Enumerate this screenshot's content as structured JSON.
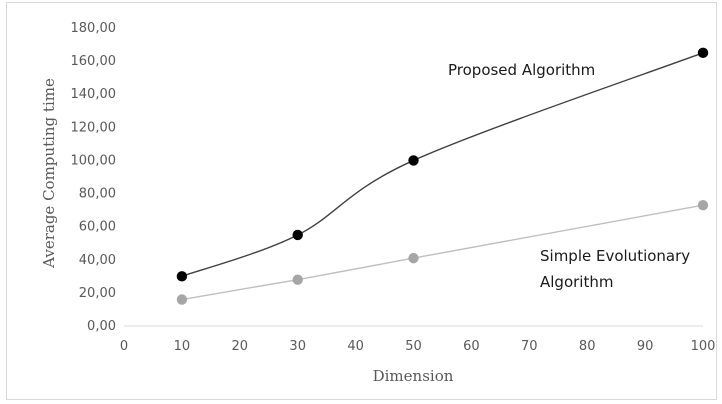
{
  "chart_data": {
    "type": "scatter",
    "xlabel": "Dimension",
    "ylabel": "Average Computing time",
    "xlim": [
      0,
      100
    ],
    "ylim": [
      0,
      180
    ],
    "x_ticks": [
      0,
      10,
      20,
      30,
      40,
      50,
      60,
      70,
      80,
      90,
      100
    ],
    "y_ticks": [
      0,
      20,
      40,
      60,
      80,
      100,
      120,
      140,
      160,
      180
    ],
    "y_tick_labels": [
      "0,00",
      "20,00",
      "40,00",
      "60,00",
      "80,00",
      "100,00",
      "120,00",
      "140,00",
      "160,00",
      "180,00"
    ],
    "grid": false,
    "series": [
      {
        "name": "Proposed Algorithm",
        "label_lines": [
          "Proposed Algorithm"
        ],
        "x": [
          10,
          30,
          50,
          100
        ],
        "y": [
          30,
          55,
          100,
          165
        ],
        "color": "#000000",
        "line_color": "#404040",
        "smooth": true
      },
      {
        "name": "Simple Evolutionary Algorithm",
        "label_lines": [
          "Simple Evolutionary",
          "Algorithm"
        ],
        "x": [
          10,
          30,
          50,
          100
        ],
        "y": [
          16,
          28,
          41,
          73
        ],
        "color": "#a6a6a6",
        "line_color": "#bfbfbf",
        "smooth": false
      }
    ]
  }
}
